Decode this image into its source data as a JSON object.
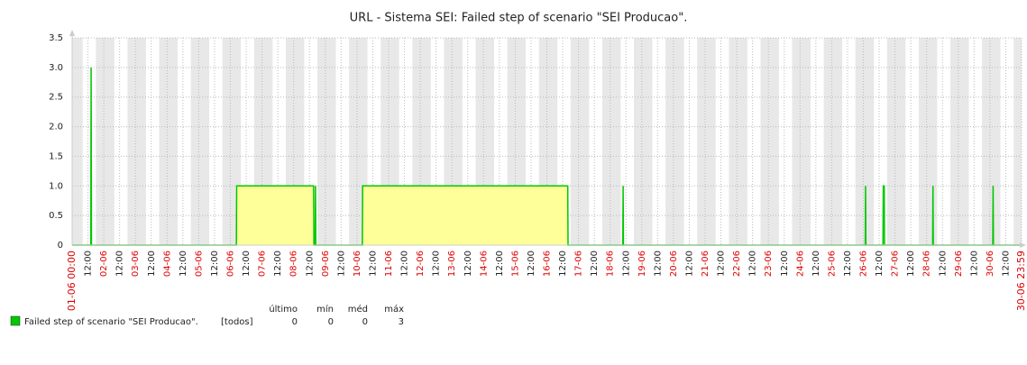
{
  "chart_data": {
    "type": "line",
    "title": "URL - Sistema SEI: Failed step of scenario \"SEI Producao\".",
    "xlim": [
      0,
      30
    ],
    "ylim": [
      0,
      3.5
    ],
    "yticks": [
      0,
      0.5,
      {
        "value": 1,
        "label": "1.0"
      },
      1.5,
      {
        "value": 2,
        "label": "2.0"
      },
      2.5,
      {
        "value": 3,
        "label": "3.0"
      },
      3.5
    ],
    "xticks": [
      {
        "value": 0,
        "label": "01-06 00:00"
      },
      {
        "value": 0.5,
        "label": "12:00"
      },
      {
        "value": 1,
        "label": "02-06"
      },
      {
        "value": 1.5,
        "label": "12:00"
      },
      {
        "value": 2,
        "label": "03-06"
      },
      {
        "value": 2.5,
        "label": "12:00"
      },
      {
        "value": 3,
        "label": "04-06"
      },
      {
        "value": 3.5,
        "label": "12:00"
      },
      {
        "value": 4,
        "label": "05-06"
      },
      {
        "value": 4.5,
        "label": "12:00"
      },
      {
        "value": 5,
        "label": "06-06"
      },
      {
        "value": 5.5,
        "label": "12:00"
      },
      {
        "value": 6,
        "label": "07-06"
      },
      {
        "value": 6.5,
        "label": "12:00"
      },
      {
        "value": 7,
        "label": "08-06"
      },
      {
        "value": 7.5,
        "label": "12:00"
      },
      {
        "value": 8,
        "label": "09-06"
      },
      {
        "value": 8.5,
        "label": "12:00"
      },
      {
        "value": 9,
        "label": "10-06"
      },
      {
        "value": 9.5,
        "label": "12:00"
      },
      {
        "value": 10,
        "label": "11-06"
      },
      {
        "value": 10.5,
        "label": "12:00"
      },
      {
        "value": 11,
        "label": "12-06"
      },
      {
        "value": 11.5,
        "label": "12:00"
      },
      {
        "value": 12,
        "label": "13-06"
      },
      {
        "value": 12.5,
        "label": "12:00"
      },
      {
        "value": 13,
        "label": "14-06"
      },
      {
        "value": 13.5,
        "label": "12:00"
      },
      {
        "value": 14,
        "label": "15-06"
      },
      {
        "value": 14.5,
        "label": "12:00"
      },
      {
        "value": 15,
        "label": "16-06"
      },
      {
        "value": 15.5,
        "label": "12:00"
      },
      {
        "value": 16,
        "label": "17-06"
      },
      {
        "value": 16.5,
        "label": "12:00"
      },
      {
        "value": 17,
        "label": "18-06"
      },
      {
        "value": 17.5,
        "label": "12:00"
      },
      {
        "value": 18,
        "label": "19-06"
      },
      {
        "value": 18.5,
        "label": "12:00"
      },
      {
        "value": 19,
        "label": "20-06"
      },
      {
        "value": 19.5,
        "label": "12:00"
      },
      {
        "value": 20,
        "label": "21-06"
      },
      {
        "value": 20.5,
        "label": "12:00"
      },
      {
        "value": 21,
        "label": "22-06"
      },
      {
        "value": 21.5,
        "label": "12:00"
      },
      {
        "value": 22,
        "label": "23-06"
      },
      {
        "value": 22.5,
        "label": "12:00"
      },
      {
        "value": 23,
        "label": "24-06"
      },
      {
        "value": 23.5,
        "label": "12:00"
      },
      {
        "value": 24,
        "label": "25-06"
      },
      {
        "value": 24.5,
        "label": "12:00"
      },
      {
        "value": 25,
        "label": "26-06"
      },
      {
        "value": 25.5,
        "label": "12:00"
      },
      {
        "value": 26,
        "label": "27-06"
      },
      {
        "value": 26.5,
        "label": "12:00"
      },
      {
        "value": 27,
        "label": "28-06"
      },
      {
        "value": 27.5,
        "label": "12:00"
      },
      {
        "value": 28,
        "label": "29-06"
      },
      {
        "value": 28.5,
        "label": "12:00"
      },
      {
        "value": 29,
        "label": "30-06"
      },
      {
        "value": 29.5,
        "label": "12:00"
      },
      {
        "value": 29.999,
        "label": "30-06 23:59"
      }
    ],
    "grid": true,
    "area_color": "#ffff99",
    "peak_color": "#ff9966",
    "series": [
      {
        "name": "Failed step of scenario \"SEI Producao\".",
        "color": "#00c800",
        "x": [
          0,
          0.59,
          0.6,
          0.61,
          5.19,
          5.2,
          7.63,
          7.64,
          7.68,
          7.69,
          7.7,
          9.17,
          9.18,
          15.66,
          15.67,
          17.4,
          17.41,
          17.42,
          25.06,
          25.07,
          25.08,
          25.62,
          25.63,
          25.66,
          25.67,
          27.19,
          27.2,
          27.21,
          29.09,
          29.1,
          29.11,
          30
        ],
        "values": [
          0,
          0,
          3,
          0,
          0,
          1,
          1,
          0,
          0,
          1,
          0,
          0,
          1,
          1,
          0,
          0,
          1,
          0,
          0,
          1,
          0,
          0,
          1,
          1,
          0,
          0,
          1,
          0,
          0,
          1,
          0,
          0
        ]
      }
    ],
    "legend_stats": {
      "headers": [
        "último",
        "mín",
        "méd",
        "máx"
      ],
      "function": "[todos]",
      "values": [
        0,
        0,
        0,
        3
      ]
    }
  }
}
